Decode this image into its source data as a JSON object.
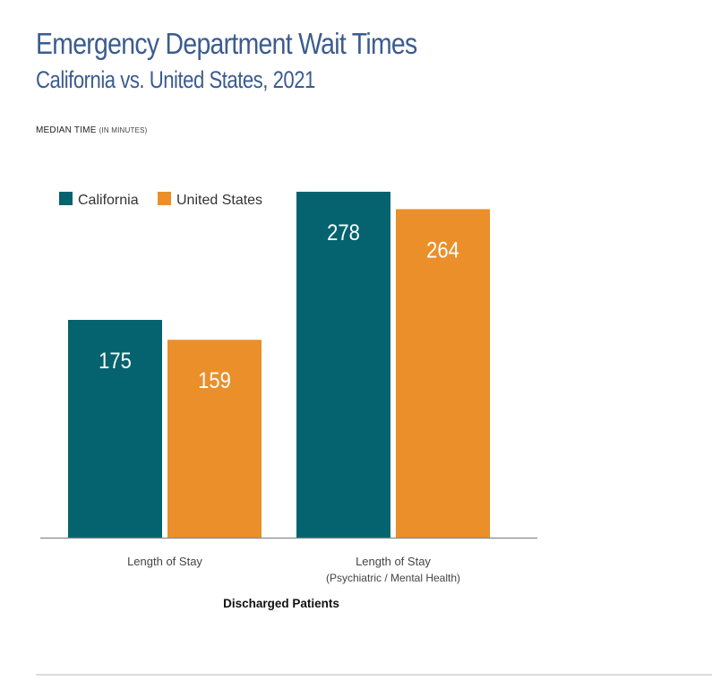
{
  "title": "Emergency Department Wait Times",
  "subtitle": "California vs. United States, 2021",
  "y_label": {
    "main": "MEDIAN TIME",
    "unit": "(IN MINUTES)"
  },
  "chart_data": {
    "type": "bar",
    "title": "Emergency Department Wait Times",
    "subtitle": "California vs. United States, 2021",
    "ylabel": "MEDIAN TIME (IN MINUTES)",
    "xlabel": "Discharged Patients",
    "categories": [
      {
        "label": "Length of Stay",
        "sublabel": ""
      },
      {
        "label": "Length of Stay",
        "sublabel": "(Psychiatric / Mental Health)"
      }
    ],
    "series": [
      {
        "name": "California",
        "color": "#05636f",
        "values": [
          175,
          278
        ]
      },
      {
        "name": "United States",
        "color": "#ea8f2a",
        "values": [
          159,
          264
        ]
      }
    ],
    "ylim": [
      0,
      288
    ],
    "grid": false,
    "legend": "top-left",
    "data_labels": true
  }
}
